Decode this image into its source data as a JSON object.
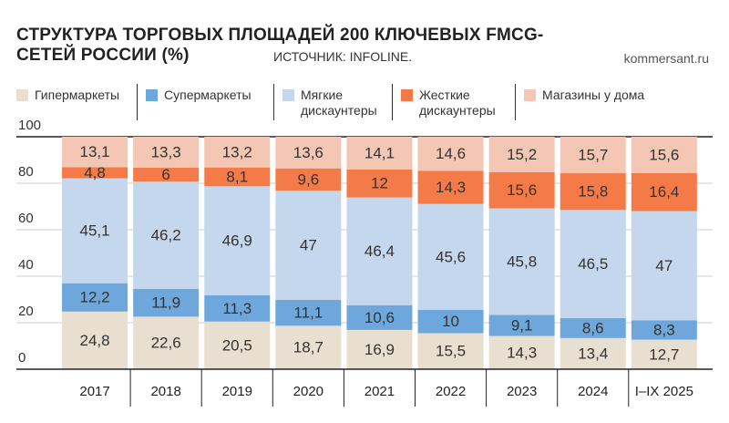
{
  "chart_data": {
    "type": "stacked_bar",
    "title": "СТРУКТУРА ТОРГОВЫХ ПЛОЩАДЕЙ 200 КЛЮЧЕВЫХ FMCG-СЕТЕЙ РОССИИ (%)",
    "source": "ИСТОЧНИК: INFOLINE.",
    "site": "kommersant.ru",
    "categories": [
      "2017",
      "2018",
      "2019",
      "2020",
      "2021",
      "2022",
      "2023",
      "2024",
      "I–IX 2025"
    ],
    "series": [
      {
        "name": "Гипермаркеты",
        "color": "#e9dfd0",
        "values": [
          24.8,
          22.6,
          20.5,
          18.7,
          16.9,
          15.5,
          14.3,
          13.4,
          12.7
        ],
        "value_labels": [
          "24,8",
          "22,6",
          "20,5",
          "18,7",
          "16,9",
          "15,5",
          "14,3",
          "13,4",
          "12,7"
        ]
      },
      {
        "name": "Супермаркеты",
        "color": "#6ea7db",
        "values": [
          12.2,
          11.9,
          11.3,
          11.1,
          10.6,
          10,
          9.1,
          8.6,
          8.3
        ],
        "value_labels": [
          "12,2",
          "11,9",
          "11,3",
          "11,1",
          "10,6",
          "10",
          "9,1",
          "8,6",
          "8,3"
        ]
      },
      {
        "name": "Мягкие дискаунтеры",
        "color": "#c4d7ec",
        "values": [
          45.1,
          46.2,
          46.9,
          47,
          46.4,
          45.6,
          45.8,
          46.5,
          47
        ],
        "value_labels": [
          "45,1",
          "46,2",
          "46,9",
          "47",
          "46,4",
          "45,6",
          "45,8",
          "46,5",
          "47"
        ]
      },
      {
        "name": "Жесткие дискаунтеры",
        "color": "#f47b48",
        "values": [
          4.8,
          6,
          8.1,
          9.6,
          12,
          14.3,
          15.6,
          15.8,
          16.4
        ],
        "value_labels": [
          "4,8",
          "6",
          "8,1",
          "9,6",
          "12",
          "14,3",
          "15,6",
          "15,8",
          "16,4"
        ]
      },
      {
        "name": "Магазины у дома",
        "color": "#f4c6b4",
        "values": [
          13.1,
          13.3,
          13.2,
          13.6,
          14.1,
          14.6,
          15.2,
          15.7,
          15.6
        ],
        "value_labels": [
          "13,1",
          "13,3",
          "13,2",
          "13,6",
          "14,1",
          "14,6",
          "15,2",
          "15,7",
          "15,6"
        ]
      }
    ],
    "ylim": [
      0,
      100
    ],
    "yticks": [
      0,
      20,
      40,
      60,
      80,
      100
    ],
    "grid": true,
    "legend": "top"
  }
}
